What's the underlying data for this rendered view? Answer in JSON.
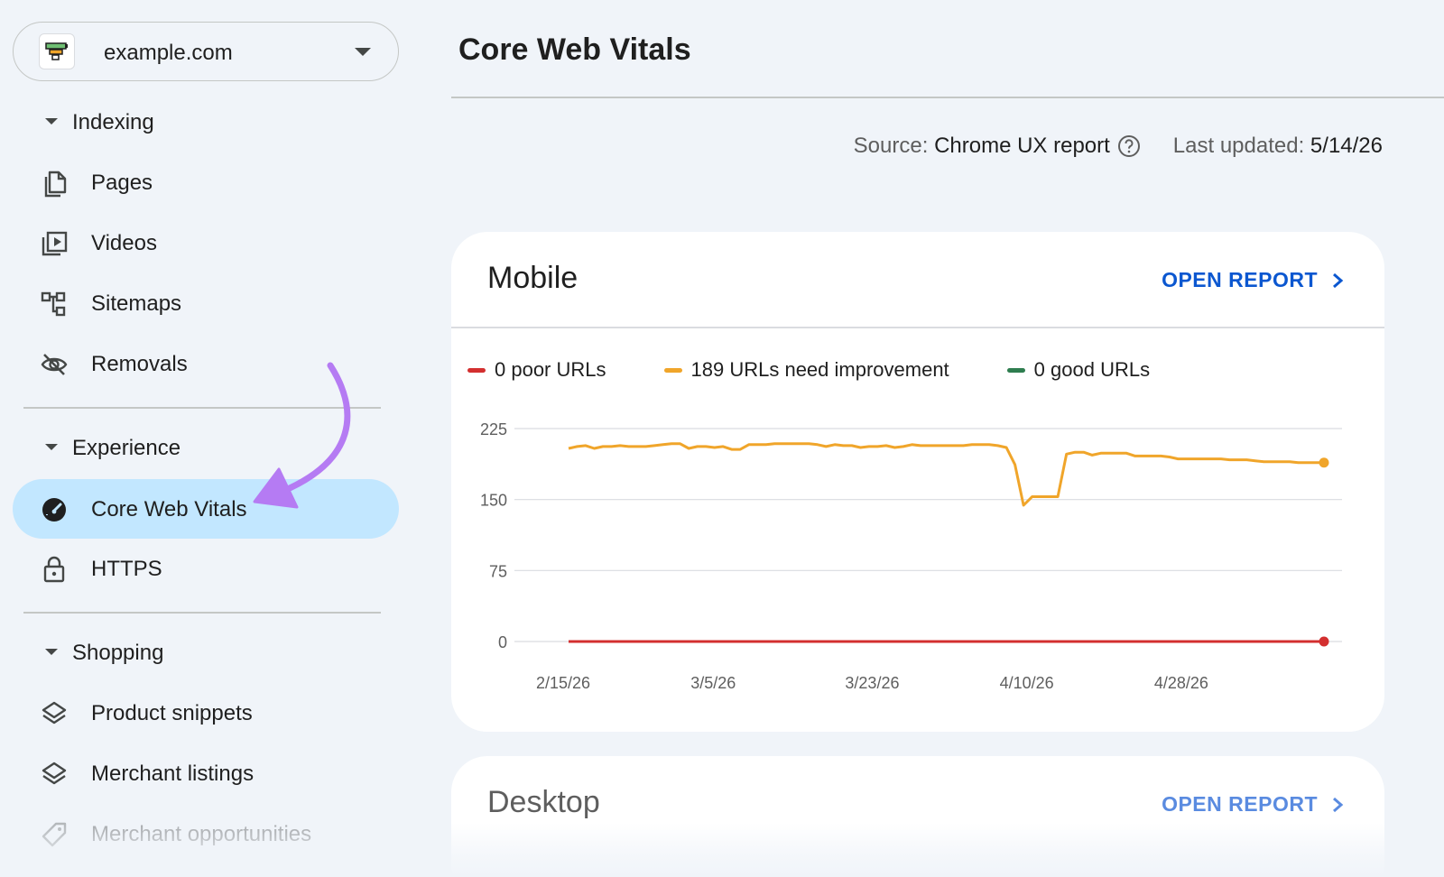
{
  "property": {
    "name": "example.com"
  },
  "sidebar": {
    "sections": [
      {
        "label": "Indexing"
      },
      {
        "label": "Experience"
      },
      {
        "label": "Shopping"
      }
    ],
    "items": {
      "pages": "Pages",
      "videos": "Videos",
      "sitemaps": "Sitemaps",
      "removals": "Removals",
      "core_web_vitals": "Core Web Vitals",
      "https": "HTTPS",
      "product_snippets": "Product snippets",
      "merchant_listings": "Merchant listings",
      "merchant_opportunities": "Merchant opportunities"
    },
    "active_item": "core_web_vitals"
  },
  "header": {
    "title": "Core Web Vitals",
    "source_label": "Source:",
    "source_value": "Chrome UX report",
    "updated_label": "Last updated:",
    "updated_value": "5/14/26"
  },
  "cards": {
    "mobile": {
      "title": "Mobile",
      "action": "OPEN REPORT"
    },
    "desktop": {
      "title": "Desktop",
      "action": "OPEN REPORT"
    }
  },
  "colors": {
    "poor": "#d32f2f",
    "needs_improvement": "#f0a52a",
    "good": "#2e7d4f",
    "accent": "#0b57d0",
    "active_bg": "#c2e7ff",
    "annotation_arrow": "#b57bf3"
  },
  "chart_data": {
    "type": "line",
    "x_tick_labels": [
      "2/15/26",
      "3/5/26",
      "3/23/26",
      "4/10/26",
      "4/28/26"
    ],
    "x_tick_days": [
      0,
      18,
      36,
      54,
      72
    ],
    "y_ticks": [
      0,
      75,
      150,
      225
    ],
    "ylim": [
      0,
      225
    ],
    "xlim_days": [
      0,
      88
    ],
    "grid": true,
    "legend_position": "top-left",
    "series": [
      {
        "name": "poor URLs",
        "legend": "0 poor URLs",
        "color_key": "poor",
        "values": [
          0,
          0,
          0,
          0,
          0,
          0,
          0,
          0,
          0,
          0,
          0,
          0,
          0,
          0,
          0,
          0,
          0,
          0,
          0,
          0,
          0,
          0,
          0,
          0,
          0,
          0,
          0,
          0,
          0,
          0,
          0,
          0,
          0,
          0,
          0,
          0,
          0,
          0,
          0,
          0,
          0,
          0,
          0,
          0,
          0,
          0,
          0,
          0,
          0,
          0,
          0,
          0,
          0,
          0,
          0,
          0,
          0,
          0,
          0,
          0,
          0,
          0,
          0,
          0,
          0,
          0,
          0,
          0,
          0,
          0,
          0,
          0,
          0,
          0,
          0,
          0,
          0,
          0,
          0,
          0,
          0,
          0,
          0,
          0,
          0,
          0,
          0,
          0,
          0
        ]
      },
      {
        "name": "URLs need improvement",
        "legend": "189 URLs need improvement",
        "color_key": "needs_improvement",
        "values": [
          204,
          206,
          207,
          204,
          206,
          206,
          207,
          206,
          206,
          206,
          207,
          208,
          209,
          209,
          204,
          206,
          206,
          205,
          206,
          203,
          203,
          208,
          208,
          208,
          209,
          209,
          209,
          209,
          209,
          208,
          206,
          208,
          207,
          207,
          205,
          206,
          206,
          207,
          205,
          206,
          208,
          207,
          207,
          207,
          207,
          207,
          207,
          208,
          208,
          208,
          207,
          205,
          187,
          144,
          153,
          153,
          153,
          153,
          198,
          200,
          200,
          197,
          199,
          199,
          199,
          199,
          196,
          196,
          196,
          196,
          195,
          193,
          193,
          193,
          193,
          193,
          193,
          192,
          192,
          192,
          191,
          190,
          190,
          190,
          190,
          189,
          189,
          189,
          189
        ]
      },
      {
        "name": "good URLs",
        "legend": "0 good URLs",
        "color_key": "good",
        "values": []
      }
    ]
  }
}
